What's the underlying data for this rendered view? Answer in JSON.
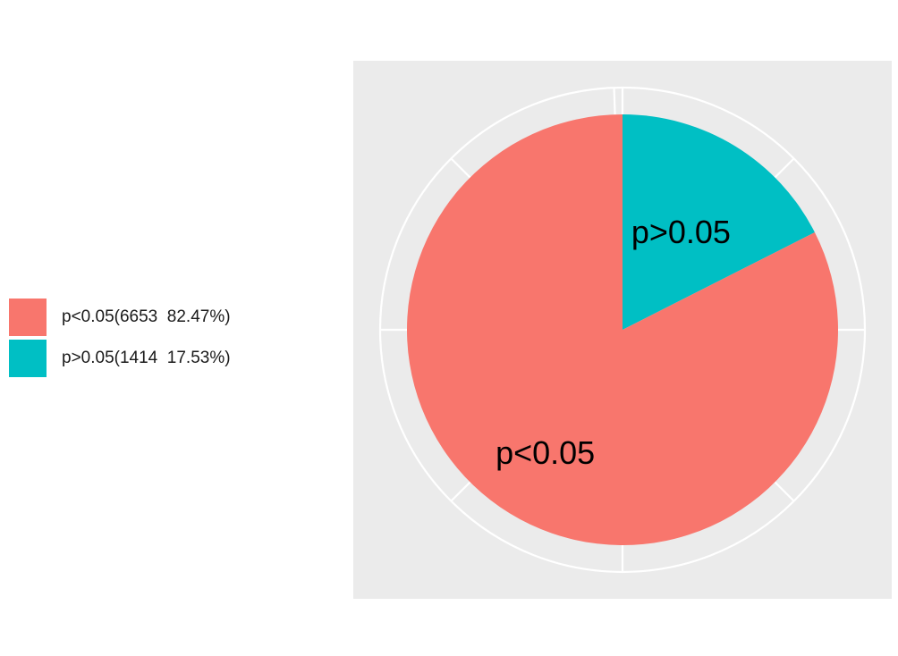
{
  "chart_data": {
    "type": "pie",
    "slices": [
      {
        "label": "p<0.05",
        "value": 6653,
        "percent": 82.47,
        "color": "#F8766D"
      },
      {
        "label": "p>0.05",
        "value": 1414,
        "percent": 17.53,
        "color": "#00BFC4"
      }
    ],
    "legend": {
      "placement": "left",
      "entries": [
        "p<0.05(6653  82.47%)",
        "p>0.05(1414  17.53%)"
      ]
    },
    "panel_background": "#EBEBEB",
    "grid": true,
    "title": ""
  }
}
